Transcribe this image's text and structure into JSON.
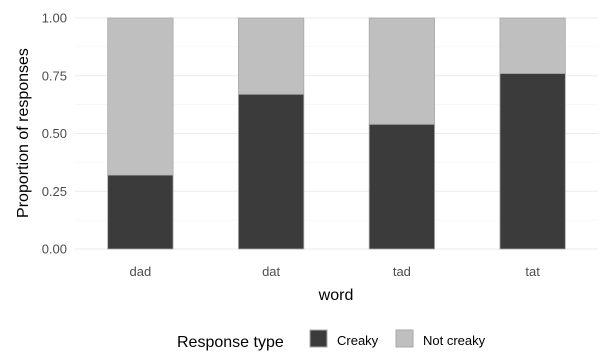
{
  "chart_data": {
    "type": "bar",
    "stacked": true,
    "categories": [
      "dad",
      "dat",
      "tad",
      "tat"
    ],
    "series": [
      {
        "name": "Creaky",
        "values": [
          0.32,
          0.67,
          0.54,
          0.76
        ],
        "color": "#3b3b3b"
      },
      {
        "name": "Not creaky",
        "values": [
          0.68,
          0.33,
          0.46,
          0.24
        ],
        "color": "#bfbfbf"
      }
    ],
    "title": "",
    "xlabel": "word",
    "ylabel": "Proportion of responses",
    "ylim": [
      0,
      1
    ],
    "yticks": [
      "0.00",
      "0.25",
      "0.50",
      "0.75",
      "1.00"
    ],
    "grid": true,
    "legend": {
      "title": "Response type",
      "position": "bottom"
    }
  }
}
